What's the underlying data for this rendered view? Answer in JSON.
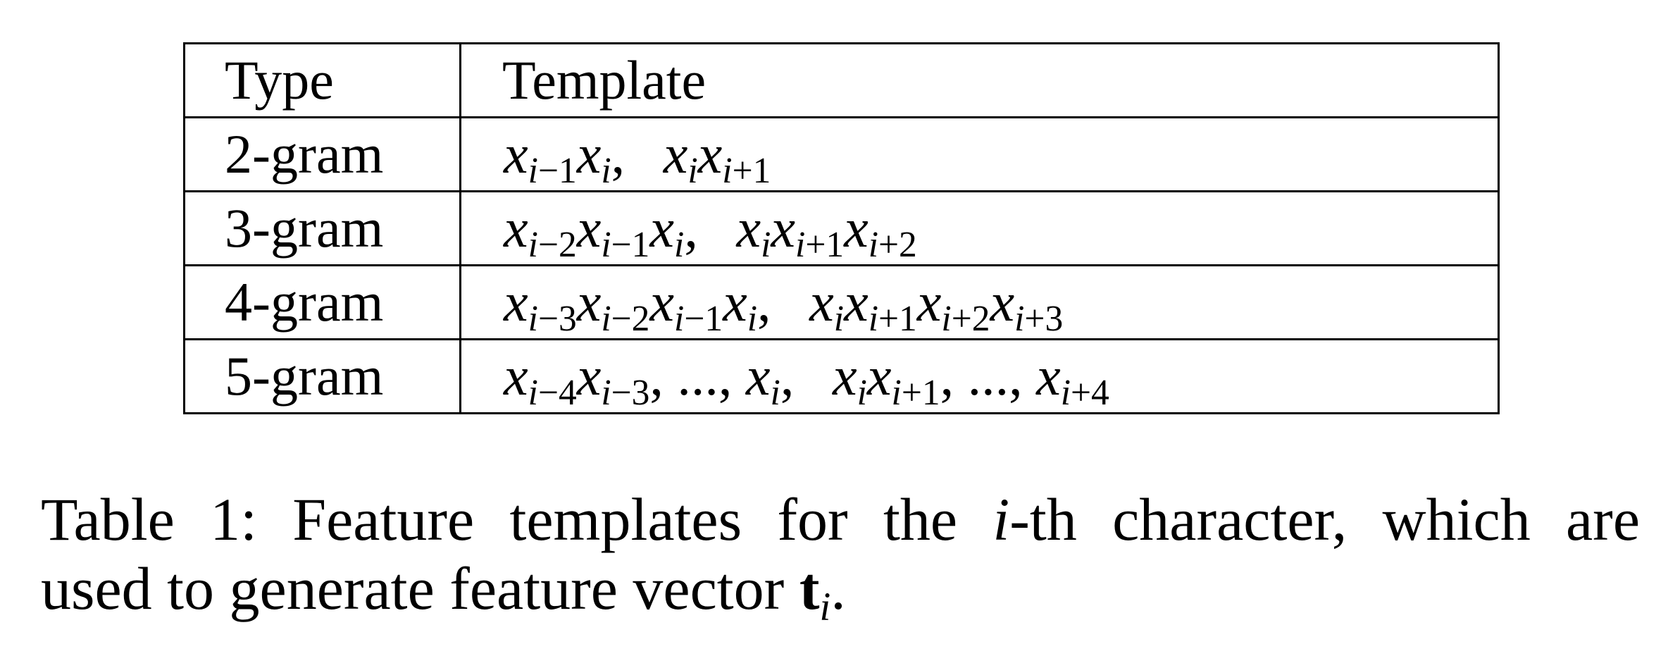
{
  "table": {
    "headers": {
      "type": "Type",
      "template": "Template"
    },
    "rows": [
      {
        "type": "2-gram",
        "template": "x_{i-1}x_i,  x_ix_{i+1}",
        "tokens": [
          [
            "x",
            "i−1"
          ],
          [
            "x",
            "i"
          ],
          [
            ",",
            ""
          ],
          [
            "sp",
            ""
          ],
          [
            "x",
            "i"
          ],
          [
            "x",
            "i+1"
          ]
        ]
      },
      {
        "type": "3-gram",
        "template": "x_{i-2}x_{i-1}x_i,  x_ix_{i+1}x_{i+2}",
        "tokens": [
          [
            "x",
            "i−2"
          ],
          [
            "x",
            "i−1"
          ],
          [
            "x",
            "i"
          ],
          [
            ",",
            ""
          ],
          [
            "sp",
            ""
          ],
          [
            "x",
            "i"
          ],
          [
            "x",
            "i+1"
          ],
          [
            "x",
            "i+2"
          ]
        ]
      },
      {
        "type": "4-gram",
        "template": "x_{i-3}x_{i-2}x_{i-1}x_i,  x_ix_{i+1}x_{i+2}x_{i+3}",
        "tokens": [
          [
            "x",
            "i−3"
          ],
          [
            "x",
            "i−2"
          ],
          [
            "x",
            "i−1"
          ],
          [
            "x",
            "i"
          ],
          [
            ",",
            ""
          ],
          [
            "sp",
            ""
          ],
          [
            "x",
            "i"
          ],
          [
            "x",
            "i+1"
          ],
          [
            "x",
            "i+2"
          ],
          [
            "x",
            "i+3"
          ]
        ]
      },
      {
        "type": "5-gram",
        "template": "x_{i-4}x_{i-3}, ..., x_i,  x_ix_{i+1}, ..., x_{i+4}",
        "tokens": [
          [
            "x",
            "i−4"
          ],
          [
            "x",
            "i−3"
          ],
          [
            ", ..., ",
            ""
          ],
          [
            "x",
            "i"
          ],
          [
            ",",
            ""
          ],
          [
            "sp",
            ""
          ],
          [
            "x",
            "i"
          ],
          [
            "x",
            "i+1"
          ],
          [
            ", ..., ",
            ""
          ],
          [
            "x",
            "i+4"
          ]
        ]
      }
    ]
  },
  "caption": {
    "line1_pre": "Table 1: Feature templates for the ",
    "line1_var": "i",
    "line1_post": "-th character, which are",
    "line2_pre": "used to generate feature vector ",
    "line2_bold": "t",
    "line2_sub": "i",
    "line2_post": "."
  }
}
